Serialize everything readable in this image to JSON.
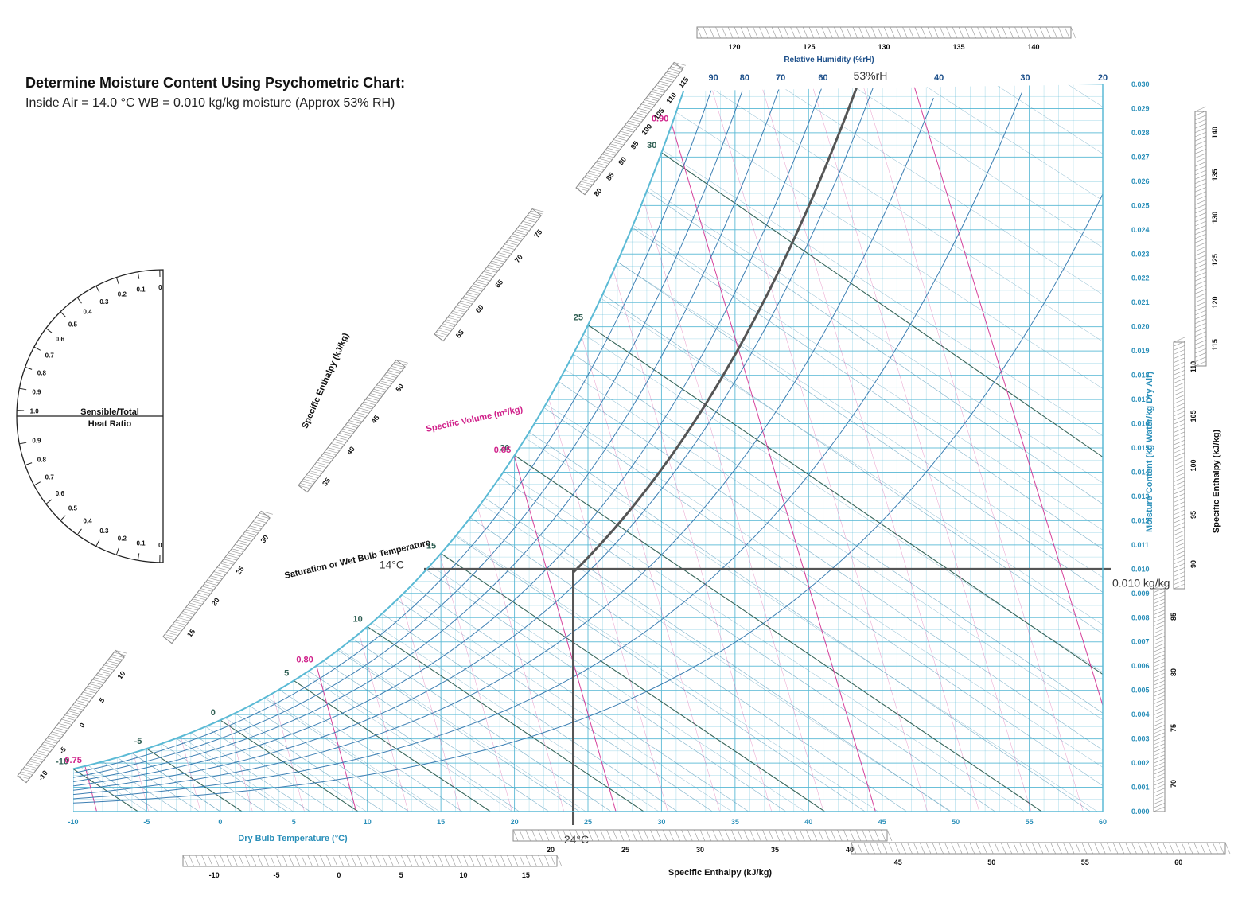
{
  "header": {
    "title": "Determine Moisture Content Using Psychometric Chart:",
    "subtitle": "Inside Air = 14.0 °C WB = 0.010 kg/kg moisture (Approx 53% RH)"
  },
  "chart_data": {
    "type": "line",
    "title": "",
    "xlabel": "Dry Bulb Temperature (°C)",
    "ylabel": "Moisture Content (kg Water/kg Dry Air)",
    "xlim": [
      -10,
      60
    ],
    "ylim": [
      0,
      0.03
    ],
    "x_ticks": [
      "-10",
      "-5",
      "0",
      "5",
      "10",
      "15",
      "20",
      "25",
      "30",
      "35",
      "40",
      "45",
      "50",
      "55",
      "60"
    ],
    "y_ticks": [
      "0.000",
      "0.001",
      "0.002",
      "0.003",
      "0.004",
      "0.005",
      "0.006",
      "0.007",
      "0.008",
      "0.009",
      "0.010",
      "0.011",
      "0.012",
      "0.013",
      "0.014",
      "0.015",
      "0.016",
      "0.017",
      "0.018",
      "0.019",
      "0.020",
      "0.021",
      "0.022",
      "0.023",
      "0.024",
      "0.025",
      "0.026",
      "0.027",
      "0.028",
      "0.029",
      "0.030"
    ],
    "relative_humidity": {
      "label": "Relative Humidity (%rH)",
      "values": [
        90,
        80,
        70,
        60,
        50,
        40,
        30,
        20
      ],
      "printed": [
        "90",
        "80",
        "70",
        "60",
        "40",
        "30",
        "20"
      ]
    },
    "saturation_label": "Saturation or Wet Bulb Temperature",
    "wet_bulb_values": [
      -10,
      -5,
      0,
      5,
      10,
      15,
      20,
      25,
      30
    ],
    "wet_bulb_labels": [
      "-10",
      "-5",
      "0",
      "5",
      "10",
      "15",
      "20",
      "25",
      "30"
    ],
    "specific_volume": {
      "label": "Specific Volume (m³/kg)",
      "values": [
        0.75,
        0.8,
        0.85,
        0.9,
        0.95
      ],
      "labels": [
        "0.75",
        "0.80",
        "0.85",
        "0.90",
        "0.95"
      ]
    },
    "enthalpy": {
      "label": "Specific Enthalpy (kJ/kg)",
      "bottom_ticks_1": [
        "-10",
        "-5",
        "0",
        "5",
        "10",
        "15"
      ],
      "bottom_ticks_2": [
        "20",
        "25",
        "30",
        "35",
        "40"
      ],
      "bottom_ticks_3": [
        "45",
        "50",
        "55",
        "60"
      ],
      "right_ticks_1": [
        "70",
        "75",
        "80",
        "85"
      ],
      "right_ticks_2": [
        "90",
        "95",
        "100",
        "105",
        "110"
      ],
      "right_ticks_3": [
        "115",
        "120",
        "125",
        "130",
        "135",
        "140"
      ],
      "top_ticks": [
        "120",
        "125",
        "130",
        "135",
        "140"
      ],
      "diagonal_ticks": [
        "-10",
        "-5",
        "0",
        "5",
        "10",
        "15",
        "20",
        "25",
        "30",
        "35",
        "40",
        "45",
        "50",
        "55",
        "60",
        "65",
        "70",
        "75",
        "80",
        "85",
        "90",
        "95",
        "100",
        "105",
        "110",
        "115"
      ]
    },
    "protractor": {
      "label_line1": "Sensible/Total",
      "label_line2": "Heat Ratio",
      "upper_ticks": [
        "1.0",
        "0.9",
        "0.8",
        "0.7",
        "0.6",
        "0.5",
        "0.4",
        "0.3",
        "0.2",
        "0.1",
        "0"
      ],
      "lower_ticks": [
        "0.9",
        "0.8",
        "0.7",
        "0.6",
        "0.5",
        "0.4",
        "0.3",
        "0.2",
        "0.1",
        "0"
      ]
    },
    "annotation": {
      "wet_bulb": 14,
      "dry_bulb": 24,
      "moisture": 0.01,
      "rh_percent": 53,
      "wet_bulb_label": "14°C",
      "dry_bulb_label": "24°C",
      "moisture_label": "0.010 kg/kg",
      "rh_label": "53%rH"
    },
    "grid": true,
    "colors": {
      "grid": "#5bbad5",
      "axis_text": "#2a8fb9",
      "rh_text": "#1c4f8a",
      "volume": "#d0218a",
      "wet_bulb": "#2e5e52",
      "annotation": "#555555"
    }
  }
}
